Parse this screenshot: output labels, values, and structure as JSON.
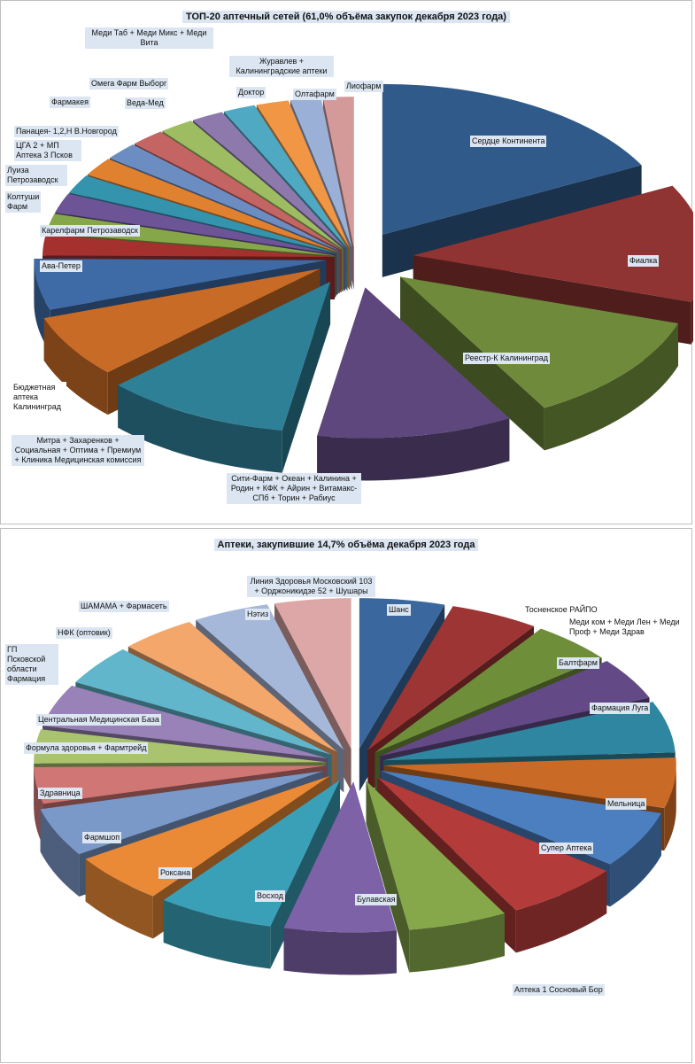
{
  "chart_data": [
    {
      "type": "pie",
      "title": "ТОП-20 аптечный сетей (61,0% объёма закупок декабря 2023 года)",
      "categories": [
        "Сердце Континента",
        "Фиалка",
        "Реестр-К Калининград",
        "Сити-Фарм + Океан + Калинина + Родин + КФК + Айрин + Витамакс-СПб + Торин + Рабиус",
        "Митра + Захаренков + Социальная + Оптима + Премиум + Клиника Медицинская комиссия",
        "Бюджетная аптека Калининград",
        "Ава-Петер",
        "Карелфарм Петрозаводск",
        "Колтуши Фарм",
        "Луиза Петрозаводск",
        "ЦГА 2 + МП Аптека 3 Псков",
        "Панацея- 1,2,Н В.Новгород",
        "Фармакея",
        "Веда-Мед",
        "Омега Фарм Выборг",
        "Меди Таб + Меди Микс + Меди Вита",
        "Доктор",
        "Журавлев + Калининградские аптеки",
        "Олтафарм",
        "Лиофарм"
      ],
      "values": [
        16.5,
        12.0,
        11.2,
        10.3,
        9.8,
        6.4,
        5.2,
        2.1,
        2.0,
        2.0,
        1.9,
        1.9,
        1.8,
        1.8,
        1.8,
        1.7,
        1.7,
        1.7,
        1.6,
        1.6
      ],
      "colors": [
        "#2f5a8a",
        "#8f3432",
        "#6e8a3a",
        "#5d477c",
        "#2e8097",
        "#c86b26",
        "#3e6aa6",
        "#a5312f",
        "#86a64a",
        "#6c5497",
        "#3493ad",
        "#e0812f",
        "#6c8dc2",
        "#c46463",
        "#9ebd62",
        "#8e79ad",
        "#4fa9c2",
        "#f09644",
        "#9bb0d6",
        "#d49a9a"
      ]
    },
    {
      "type": "pie",
      "title": "Аптеки, закупившие 14,7% объёма декабря 2023 года",
      "categories": [
        "Шанс",
        "Тосненское РАЙПО",
        "Балтфарм",
        "Фармация Луга",
        "Меди ком + Меди Лен + Меди Проф + Меди Здрав",
        "Мельница",
        "Супер Аптека",
        "Аптека 1 Сосновый Бор",
        "Булавская",
        "Восход",
        "Роксана",
        "Фармшоп",
        "Здравница",
        "Формула здоровья + Фармтрейд",
        "Центральная Медицинская База",
        "ГП Псковской области Фармация",
        "НФК (оптовик)",
        "ШАМАМА  + Фармасеть",
        "Нэтиз",
        "Линия Здоровья Московский 103 + Орджоникидзе 52 + Шушары"
      ],
      "values": [
        4.8,
        5.0,
        4.6,
        4.6,
        5.6,
        5.5,
        6.2,
        6.6,
        5.6,
        6.3,
        6.6,
        5.5,
        5.3,
        4.0,
        3.7,
        4.6,
        4.4,
        4.3,
        4.3,
        4.3
      ],
      "colors": [
        "#3a689e",
        "#9c3533",
        "#6e8e3a",
        "#634a86",
        "#2f86a0",
        "#c96b26",
        "#4b7fc0",
        "#b33b39",
        "#86a84a",
        "#7d62a8",
        "#3aa0b8",
        "#ea8a36",
        "#7a98c8",
        "#d07675",
        "#a9c36e",
        "#9882b8",
        "#62b6cc",
        "#f4a76a",
        "#a6b8d9",
        "#dca7a6"
      ]
    }
  ]
}
